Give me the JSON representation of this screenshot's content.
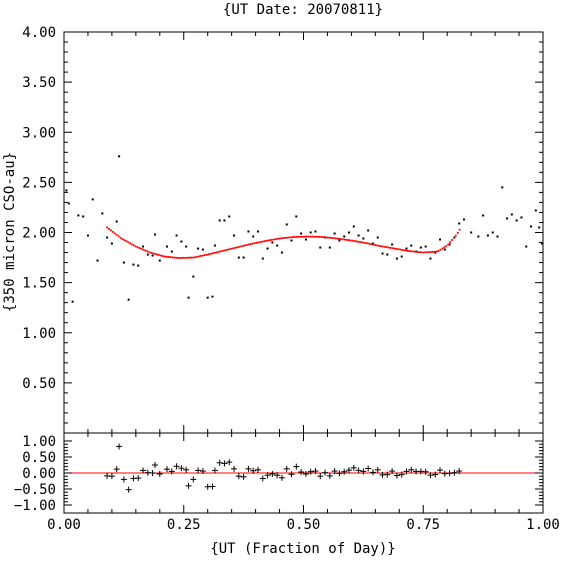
{
  "chart_data": [
    {
      "type": "scatter",
      "title": "{UT Date: 20070811}",
      "ylabel": "{350 micron CSO-au}",
      "xlabel": "",
      "xlim": [
        0.0,
        1.0
      ],
      "ylim": [
        0.0,
        4.0
      ],
      "xticks": [
        "0.00",
        "0.25",
        "0.50",
        "0.75",
        "1.00"
      ],
      "yticks": [
        "0.50",
        "1.00",
        "1.50",
        "2.00",
        "2.50",
        "3.00",
        "3.50",
        "4.00"
      ],
      "yticks_values": [
        0.5,
        1.0,
        1.5,
        2.0,
        2.5,
        3.0,
        3.5,
        4.0
      ],
      "grid": false,
      "series": [
        {
          "marker": "dot",
          "color": "#000000",
          "points": [
            [
              0.005,
              2.42
            ],
            [
              0.01,
              2.29
            ],
            [
              0.018,
              1.31
            ],
            [
              0.03,
              2.17
            ],
            [
              0.04,
              2.16
            ],
            [
              0.05,
              1.97
            ],
            [
              0.06,
              2.33
            ],
            [
              0.07,
              1.72
            ],
            [
              0.08,
              2.19
            ],
            [
              0.09,
              1.95
            ],
            [
              0.1,
              1.89
            ],
            [
              0.11,
              2.11
            ],
            [
              0.115,
              2.76
            ],
            [
              0.125,
              1.7
            ],
            [
              0.135,
              1.33
            ],
            [
              0.145,
              1.68
            ],
            [
              0.155,
              1.67
            ],
            [
              0.165,
              1.86
            ],
            [
              0.175,
              1.78
            ],
            [
              0.185,
              1.77
            ],
            [
              0.19,
              1.98
            ],
            [
              0.2,
              1.72
            ],
            [
              0.215,
              1.86
            ],
            [
              0.225,
              1.81
            ],
            [
              0.235,
              1.97
            ],
            [
              0.245,
              1.91
            ],
            [
              0.255,
              1.86
            ],
            [
              0.26,
              1.35
            ],
            [
              0.27,
              1.56
            ],
            [
              0.28,
              1.84
            ],
            [
              0.29,
              1.83
            ],
            [
              0.3,
              1.35
            ],
            [
              0.31,
              1.36
            ],
            [
              0.315,
              1.87
            ],
            [
              0.325,
              2.12
            ],
            [
              0.335,
              2.12
            ],
            [
              0.345,
              2.16
            ],
            [
              0.355,
              1.97
            ],
            [
              0.365,
              1.75
            ],
            [
              0.375,
              1.75
            ],
            [
              0.385,
              2.01
            ],
            [
              0.395,
              1.96
            ],
            [
              0.405,
              2.01
            ],
            [
              0.415,
              1.74
            ],
            [
              0.425,
              1.84
            ],
            [
              0.435,
              1.9
            ],
            [
              0.445,
              1.87
            ],
            [
              0.455,
              1.8
            ],
            [
              0.465,
              2.08
            ],
            [
              0.475,
              1.92
            ],
            [
              0.485,
              2.16
            ],
            [
              0.495,
              1.99
            ],
            [
              0.505,
              1.93
            ],
            [
              0.515,
              2.0
            ],
            [
              0.525,
              2.01
            ],
            [
              0.535,
              1.85
            ],
            [
              0.545,
              1.95
            ],
            [
              0.555,
              1.85
            ],
            [
              0.565,
              1.99
            ],
            [
              0.575,
              1.92
            ],
            [
              0.585,
              1.96
            ],
            [
              0.595,
              2.0
            ],
            [
              0.605,
              2.06
            ],
            [
              0.615,
              1.97
            ],
            [
              0.625,
              1.94
            ],
            [
              0.635,
              2.02
            ],
            [
              0.645,
              1.89
            ],
            [
              0.655,
              1.95
            ],
            [
              0.665,
              1.79
            ],
            [
              0.675,
              1.78
            ],
            [
              0.685,
              1.88
            ],
            [
              0.695,
              1.74
            ],
            [
              0.705,
              1.76
            ],
            [
              0.715,
              1.84
            ],
            [
              0.725,
              1.87
            ],
            [
              0.735,
              1.81
            ],
            [
              0.745,
              1.85
            ],
            [
              0.755,
              1.86
            ],
            [
              0.765,
              1.74
            ],
            [
              0.775,
              1.8
            ],
            [
              0.785,
              1.93
            ],
            [
              0.795,
              1.83
            ],
            [
              0.805,
              1.88
            ],
            [
              0.815,
              1.95
            ],
            [
              0.825,
              2.09
            ],
            [
              0.835,
              2.13
            ],
            [
              0.85,
              2.0
            ],
            [
              0.865,
              1.96
            ],
            [
              0.875,
              2.17
            ],
            [
              0.885,
              1.97
            ],
            [
              0.895,
              2.0
            ],
            [
              0.905,
              1.96
            ],
            [
              0.915,
              2.45
            ],
            [
              0.925,
              2.14
            ],
            [
              0.935,
              2.18
            ],
            [
              0.945,
              2.12
            ],
            [
              0.955,
              2.15
            ],
            [
              0.965,
              1.86
            ],
            [
              0.975,
              2.06
            ],
            [
              0.985,
              2.22
            ],
            [
              0.992,
              2.05
            ],
            [
              0.998,
              1.89
            ]
          ]
        },
        {
          "type": "line",
          "color": "#ff0000",
          "style": "dotted-fit",
          "x_range": [
            0.09,
            0.83
          ],
          "fit_points": [
            [
              0.09,
              2.05
            ],
            [
              0.12,
              1.94
            ],
            [
              0.15,
              1.86
            ],
            [
              0.18,
              1.8
            ],
            [
              0.21,
              1.76
            ],
            [
              0.24,
              1.745
            ],
            [
              0.27,
              1.75
            ],
            [
              0.3,
              1.78
            ],
            [
              0.33,
              1.815
            ],
            [
              0.36,
              1.85
            ],
            [
              0.39,
              1.885
            ],
            [
              0.42,
              1.915
            ],
            [
              0.45,
              1.94
            ],
            [
              0.48,
              1.955
            ],
            [
              0.51,
              1.96
            ],
            [
              0.54,
              1.955
            ],
            [
              0.57,
              1.94
            ],
            [
              0.6,
              1.92
            ],
            [
              0.63,
              1.895
            ],
            [
              0.66,
              1.865
            ],
            [
              0.69,
              1.84
            ],
            [
              0.72,
              1.815
            ],
            [
              0.75,
              1.8
            ],
            [
              0.78,
              1.81
            ],
            [
              0.8,
              1.87
            ],
            [
              0.82,
              1.98
            ],
            [
              0.83,
              2.06
            ]
          ]
        }
      ]
    },
    {
      "type": "scatter",
      "title": "",
      "xlabel": "{UT (Fraction of Day)}",
      "ylabel": "",
      "xlim": [
        0.0,
        1.0
      ],
      "ylim": [
        -1.25,
        1.25
      ],
      "xticks": [
        "0.00",
        "0.25",
        "0.50",
        "0.75",
        "1.00"
      ],
      "yticks": [
        "1.00",
        "0.50",
        "0.00",
        "−0.50",
        "−1.00"
      ],
      "yticks_values": [
        1.0,
        0.5,
        0.0,
        -0.5,
        -1.0
      ],
      "grid": false,
      "zero_line_color": "#ff0000",
      "series": [
        {
          "marker": "plus",
          "color": "#000000",
          "points": [
            [
              0.09,
              -0.09
            ],
            [
              0.1,
              -0.1
            ],
            [
              0.11,
              0.12
            ],
            [
              0.115,
              0.83
            ],
            [
              0.125,
              -0.2
            ],
            [
              0.135,
              -0.52
            ],
            [
              0.145,
              -0.17
            ],
            [
              0.155,
              -0.16
            ],
            [
              0.165,
              0.08
            ],
            [
              0.175,
              0.01
            ],
            [
              0.185,
              0.0
            ],
            [
              0.19,
              0.25
            ],
            [
              0.2,
              -0.03
            ],
            [
              0.215,
              0.12
            ],
            [
              0.225,
              0.05
            ],
            [
              0.235,
              0.21
            ],
            [
              0.245,
              0.15
            ],
            [
              0.255,
              0.1
            ],
            [
              0.26,
              -0.4
            ],
            [
              0.27,
              -0.2
            ],
            [
              0.28,
              0.08
            ],
            [
              0.29,
              0.06
            ],
            [
              0.3,
              -0.43
            ],
            [
              0.31,
              -0.42
            ],
            [
              0.315,
              0.08
            ],
            [
              0.325,
              0.32
            ],
            [
              0.335,
              0.3
            ],
            [
              0.345,
              0.34
            ],
            [
              0.355,
              0.13
            ],
            [
              0.365,
              -0.1
            ],
            [
              0.375,
              -0.12
            ],
            [
              0.385,
              0.13
            ],
            [
              0.395,
              0.07
            ],
            [
              0.405,
              0.1
            ],
            [
              0.415,
              -0.17
            ],
            [
              0.425,
              -0.07
            ],
            [
              0.435,
              -0.03
            ],
            [
              0.445,
              -0.07
            ],
            [
              0.455,
              -0.15
            ],
            [
              0.465,
              0.13
            ],
            [
              0.475,
              -0.04
            ],
            [
              0.485,
              0.2
            ],
            [
              0.495,
              0.03
            ],
            [
              0.505,
              -0.03
            ],
            [
              0.515,
              0.04
            ],
            [
              0.525,
              0.06
            ],
            [
              0.535,
              -0.1
            ],
            [
              0.545,
              0.01
            ],
            [
              0.555,
              -0.09
            ],
            [
              0.565,
              0.06
            ],
            [
              0.575,
              -0.01
            ],
            [
              0.585,
              0.04
            ],
            [
              0.595,
              0.09
            ],
            [
              0.605,
              0.16
            ],
            [
              0.615,
              0.08
            ],
            [
              0.625,
              0.05
            ],
            [
              0.635,
              0.14
            ],
            [
              0.645,
              0.02
            ],
            [
              0.655,
              0.1
            ],
            [
              0.665,
              -0.06
            ],
            [
              0.675,
              -0.05
            ],
            [
              0.685,
              0.06
            ],
            [
              0.695,
              -0.08
            ],
            [
              0.705,
              -0.05
            ],
            [
              0.715,
              0.05
            ],
            [
              0.725,
              0.1
            ],
            [
              0.735,
              0.05
            ],
            [
              0.745,
              0.05
            ],
            [
              0.755,
              0.04
            ],
            [
              0.765,
              -0.07
            ],
            [
              0.775,
              -0.05
            ],
            [
              0.785,
              0.09
            ],
            [
              0.795,
              -0.02
            ],
            [
              0.805,
              -0.01
            ],
            [
              0.815,
              0.01
            ],
            [
              0.825,
              0.06
            ]
          ]
        }
      ]
    }
  ]
}
